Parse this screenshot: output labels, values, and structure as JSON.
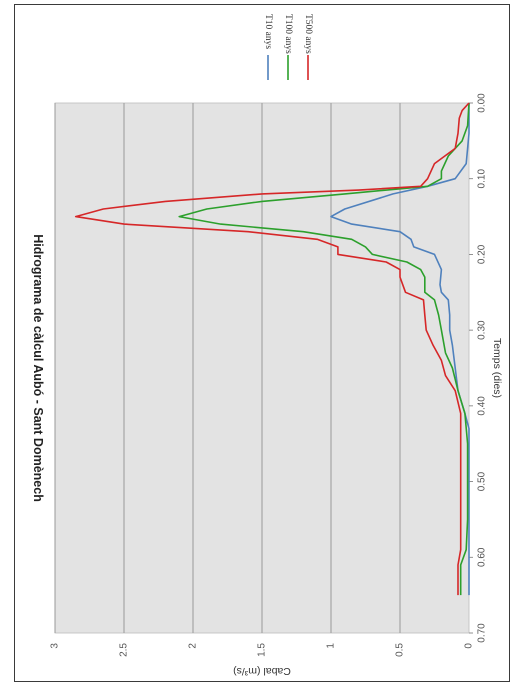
{
  "chart_data": {
    "type": "line",
    "orientation": "rotated 90° clockwise (time axis runs top-to-bottom)",
    "title": "Hidrograma de càlcul Aubó - Sant Domènech",
    "xlabel": "Temps (dies)",
    "ylabel": "Cabal (m³/s)",
    "xlim": [
      0,
      0.7
    ],
    "ylim": [
      0,
      3
    ],
    "xticks": [
      "0.00",
      "0.10",
      "0.20",
      "0.30",
      "0.40",
      "0.50",
      "0.60",
      "0.70"
    ],
    "yticks": [
      "0",
      "0.5",
      "1",
      "1.5",
      "2",
      "2.5",
      "3"
    ],
    "grid": true,
    "legend_position": "top-right",
    "series": [
      {
        "name": "T10 anys",
        "color": "#4f81bd",
        "points": [
          [
            0,
            0
          ],
          [
            0.04,
            0
          ],
          [
            0.06,
            0.01
          ],
          [
            0.08,
            0.02
          ],
          [
            0.1,
            0.1
          ],
          [
            0.11,
            0.3
          ],
          [
            0.12,
            0.55
          ],
          [
            0.14,
            0.9
          ],
          [
            0.15,
            1.0
          ],
          [
            0.16,
            0.85
          ],
          [
            0.17,
            0.5
          ],
          [
            0.18,
            0.42
          ],
          [
            0.19,
            0.4
          ],
          [
            0.2,
            0.25
          ],
          [
            0.22,
            0.2
          ],
          [
            0.24,
            0.21
          ],
          [
            0.25,
            0.2
          ],
          [
            0.26,
            0.15
          ],
          [
            0.28,
            0.14
          ],
          [
            0.3,
            0.14
          ],
          [
            0.32,
            0.12
          ],
          [
            0.35,
            0.1
          ],
          [
            0.38,
            0.08
          ],
          [
            0.41,
            0.03
          ],
          [
            0.43,
            0
          ],
          [
            0.5,
            0
          ],
          [
            0.6,
            0
          ],
          [
            0.65,
            0
          ]
        ]
      },
      {
        "name": "T100 anys",
        "color": "#2ca02c",
        "points": [
          [
            0,
            0
          ],
          [
            0.03,
            0.01
          ],
          [
            0.05,
            0.05
          ],
          [
            0.07,
            0.15
          ],
          [
            0.09,
            0.2
          ],
          [
            0.1,
            0.2
          ],
          [
            0.11,
            0.3
          ],
          [
            0.12,
            0.9
          ],
          [
            0.13,
            1.5
          ],
          [
            0.14,
            1.9
          ],
          [
            0.15,
            2.1
          ],
          [
            0.16,
            1.8
          ],
          [
            0.17,
            1.2
          ],
          [
            0.18,
            0.85
          ],
          [
            0.19,
            0.75
          ],
          [
            0.2,
            0.7
          ],
          [
            0.21,
            0.45
          ],
          [
            0.22,
            0.35
          ],
          [
            0.23,
            0.32
          ],
          [
            0.25,
            0.32
          ],
          [
            0.26,
            0.25
          ],
          [
            0.28,
            0.22
          ],
          [
            0.3,
            0.2
          ],
          [
            0.33,
            0.17
          ],
          [
            0.35,
            0.12
          ],
          [
            0.38,
            0.08
          ],
          [
            0.41,
            0.03
          ],
          [
            0.45,
            0.01
          ],
          [
            0.55,
            0.01
          ],
          [
            0.59,
            0.02
          ],
          [
            0.61,
            0.06
          ],
          [
            0.65,
            0.06
          ]
        ]
      },
      {
        "name": "T500 anys",
        "color": "#d62728",
        "points": [
          [
            0,
            0
          ],
          [
            0.01,
            0.05
          ],
          [
            0.02,
            0.07
          ],
          [
            0.04,
            0.08
          ],
          [
            0.06,
            0.1
          ],
          [
            0.08,
            0.25
          ],
          [
            0.1,
            0.3
          ],
          [
            0.11,
            0.35
          ],
          [
            0.115,
            0.8
          ],
          [
            0.12,
            1.5
          ],
          [
            0.13,
            2.2
          ],
          [
            0.14,
            2.65
          ],
          [
            0.15,
            2.85
          ],
          [
            0.16,
            2.5
          ],
          [
            0.17,
            1.6
          ],
          [
            0.18,
            1.1
          ],
          [
            0.19,
            0.95
          ],
          [
            0.2,
            0.95
          ],
          [
            0.21,
            0.6
          ],
          [
            0.22,
            0.5
          ],
          [
            0.23,
            0.5
          ],
          [
            0.25,
            0.46
          ],
          [
            0.26,
            0.33
          ],
          [
            0.28,
            0.32
          ],
          [
            0.3,
            0.31
          ],
          [
            0.32,
            0.26
          ],
          [
            0.34,
            0.2
          ],
          [
            0.36,
            0.17
          ],
          [
            0.38,
            0.1
          ],
          [
            0.41,
            0.06
          ],
          [
            0.45,
            0.06
          ],
          [
            0.55,
            0.06
          ],
          [
            0.59,
            0.06
          ],
          [
            0.61,
            0.08
          ],
          [
            0.65,
            0.08
          ]
        ]
      }
    ]
  }
}
